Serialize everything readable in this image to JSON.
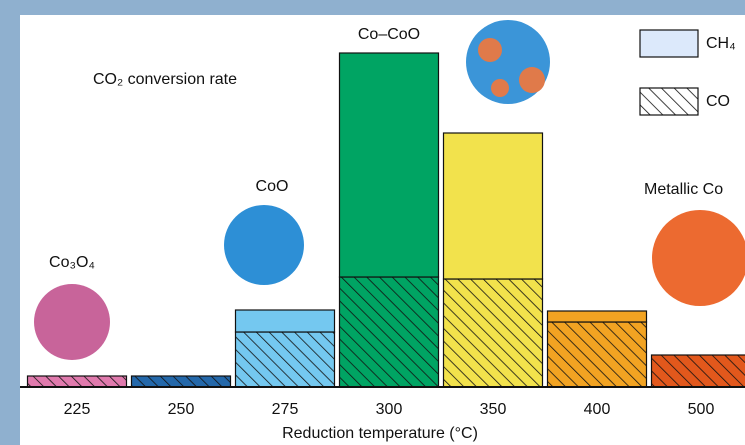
{
  "chart_data": {
    "type": "stacked-bar",
    "title": "CO₂ conversion rate",
    "x_label": "Reduction temperature (°C)",
    "categories": [
      "225",
      "250",
      "275",
      "300",
      "350",
      "400",
      "500"
    ],
    "colors": [
      "#e07aad",
      "#2468aa",
      "#74c8f0",
      "#00a463",
      "#f2e24c",
      "#f2a322",
      "#e2581c"
    ],
    "series": [
      {
        "name": "CO",
        "pattern": "hatched",
        "values": [
          11,
          11,
          55,
          110,
          108,
          65,
          32
        ]
      },
      {
        "name": "CH₄",
        "pattern": "solid",
        "values": [
          0,
          0,
          22,
          224,
          146,
          11,
          0
        ]
      }
    ],
    "legend": "top-right",
    "annotations": [
      "Co₃O₄",
      "CoO",
      "Co–CoO",
      "Metallic Co"
    ]
  }
}
